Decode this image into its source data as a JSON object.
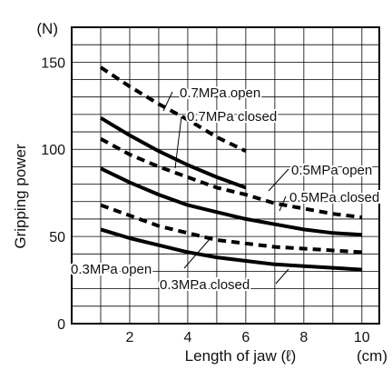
{
  "chart_data": {
    "type": "line",
    "title": "",
    "header_text": "",
    "unit_y": "(N)",
    "unit_x": "(cm)",
    "xlabel": "Length of jaw (ℓ)",
    "ylabel": "Gripping power",
    "xlim": [
      0,
      10.6
    ],
    "ylim": [
      0,
      170
    ],
    "x_ticks": [
      2,
      4,
      6,
      8,
      10
    ],
    "y_ticks": [
      0,
      50,
      100,
      150
    ],
    "grid": true,
    "series": [
      {
        "name": "0.7MPa open",
        "style": "dashed",
        "x": [
          1,
          2,
          3,
          4,
          5,
          6
        ],
        "y": [
          147,
          136,
          126,
          117,
          107,
          99
        ]
      },
      {
        "name": "0.7MPa closed",
        "style": "solid",
        "x": [
          1,
          2,
          3,
          4,
          5,
          6
        ],
        "y": [
          118,
          108,
          99,
          91,
          84,
          78
        ]
      },
      {
        "name": "0.5MPa open",
        "style": "dashed",
        "x": [
          1,
          2,
          3,
          4,
          5,
          6,
          7,
          8,
          9,
          10
        ],
        "y": [
          106,
          97,
          90,
          84,
          78,
          74,
          69,
          66,
          63,
          61
        ]
      },
      {
        "name": "0.5MPa closed",
        "style": "solid",
        "x": [
          1,
          2,
          3,
          4,
          5,
          6,
          7,
          8,
          9,
          10
        ],
        "y": [
          89,
          81,
          74,
          68,
          64,
          60,
          57,
          54,
          52,
          51
        ]
      },
      {
        "name": "0.3MPa open",
        "style": "dashed",
        "x": [
          1,
          2,
          3,
          4,
          5,
          6,
          7,
          8,
          9,
          10
        ],
        "y": [
          68,
          62,
          56,
          52,
          48,
          46,
          44,
          43,
          42,
          41
        ]
      },
      {
        "name": "0.3MPa closed",
        "style": "solid",
        "x": [
          1,
          2,
          3,
          4,
          5,
          6,
          7,
          8,
          9,
          10
        ],
        "y": [
          54,
          49,
          45,
          41,
          38,
          36,
          34,
          33,
          32,
          31
        ]
      }
    ],
    "colors": {
      "line": "#000000",
      "grid": "#000000",
      "background": "#ffffff"
    }
  }
}
